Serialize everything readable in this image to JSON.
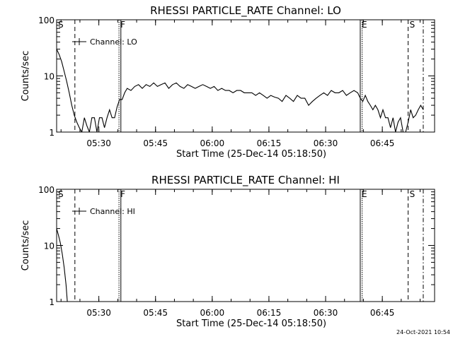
{
  "footer": {
    "timestamp": "24-Oct-2021 10:54"
  },
  "chart_data": [
    {
      "type": "line",
      "title": "RHESSI PARTICLE_RATE Channel: LO",
      "xlabel": "Start Time (25-Dec-14 05:18:50)",
      "ylabel": "Counts/sec",
      "yscale": "log",
      "ylim": [
        1,
        100
      ],
      "xlim": [
        "05:18:50",
        "06:58:50"
      ],
      "x_ticks": [
        "05:30",
        "05:45",
        "06:00",
        "06:15",
        "06:30",
        "06:45"
      ],
      "y_ticks": [
        "1",
        "10",
        "100"
      ],
      "legend": {
        "entries": [
          "Channel: LO"
        ],
        "placement": "top-left"
      },
      "grid": false,
      "markers": [
        {
          "label": "S",
          "time": "05:18:50",
          "style": "solid"
        },
        {
          "time": "05:23:40",
          "style": "dashed"
        },
        {
          "label": "F",
          "time": "05:35:20",
          "style": "dotted"
        },
        {
          "time": "05:35:50",
          "style": "solid"
        },
        {
          "label": "E",
          "time": "06:39:10",
          "style": "solid"
        },
        {
          "time": "06:39:40",
          "style": "dotted"
        },
        {
          "label": "S",
          "time": "06:51:50",
          "style": "dashed"
        },
        {
          "time": "06:55:50",
          "style": "dashdot"
        }
      ],
      "series": [
        {
          "name": "Channel: LO",
          "x": [
            "05:18:50",
            "05:19:30",
            "05:20:10",
            "05:20:50",
            "05:21:30",
            "05:22:10",
            "05:22:50",
            "05:23:30",
            "05:24:10",
            "05:24:50",
            "05:25:30",
            "05:26:10",
            "05:26:50",
            "05:27:30",
            "05:28:10",
            "05:28:50",
            "05:29:30",
            "05:30:10",
            "05:30:50",
            "05:31:30",
            "05:32:10",
            "05:32:50",
            "05:33:30",
            "05:34:10",
            "05:34:50",
            "05:35:30",
            "05:36:10",
            "05:36:50",
            "05:37:30",
            "05:38:30",
            "05:39:30",
            "05:40:30",
            "05:41:30",
            "05:42:30",
            "05:43:30",
            "05:44:30",
            "05:45:30",
            "05:46:30",
            "05:47:30",
            "05:48:30",
            "05:49:30",
            "05:50:30",
            "05:51:30",
            "05:52:30",
            "05:53:30",
            "05:54:30",
            "05:55:30",
            "05:56:30",
            "05:57:30",
            "05:58:30",
            "05:59:30",
            "06:00:30",
            "06:01:30",
            "06:02:30",
            "06:03:30",
            "06:04:30",
            "06:05:30",
            "06:06:30",
            "06:07:30",
            "06:08:30",
            "06:09:30",
            "06:10:30",
            "06:11:30",
            "06:12:30",
            "06:13:30",
            "06:14:30",
            "06:15:30",
            "06:16:30",
            "06:17:30",
            "06:18:30",
            "06:19:30",
            "06:20:30",
            "06:21:30",
            "06:22:30",
            "06:23:30",
            "06:24:30",
            "06:25:30",
            "06:26:30",
            "06:27:30",
            "06:28:30",
            "06:29:30",
            "06:30:30",
            "06:31:30",
            "06:32:30",
            "06:33:30",
            "06:34:30",
            "06:35:30",
            "06:36:30",
            "06:37:30",
            "06:38:30",
            "06:39:10",
            "06:39:50",
            "06:40:30",
            "06:41:10",
            "06:41:50",
            "06:42:30",
            "06:43:10",
            "06:43:50",
            "06:44:30",
            "06:45:10",
            "06:45:50",
            "06:46:30",
            "06:47:10",
            "06:47:50",
            "06:48:30",
            "06:49:10",
            "06:49:50",
            "06:50:30",
            "06:51:10",
            "06:51:50",
            "06:52:30",
            "06:53:10",
            "06:53:50",
            "06:54:30",
            "06:55:10",
            "06:55:50"
          ],
          "y": [
            30,
            24,
            18,
            12,
            8,
            5,
            3,
            2,
            1.5,
            1.2,
            1,
            1.8,
            1.3,
            1,
            1.8,
            1.8,
            1,
            1.8,
            1.8,
            1.2,
            1.8,
            2.5,
            1.8,
            1.8,
            2.8,
            3.8,
            3.8,
            5,
            6,
            5.5,
            6.5,
            7,
            6,
            7,
            6.5,
            7.5,
            6.5,
            7,
            7.5,
            6,
            7,
            7.5,
            6.5,
            6,
            7,
            6.5,
            6,
            6.5,
            7,
            6.5,
            6,
            6.5,
            5.5,
            6,
            5.5,
            5.5,
            5,
            5.5,
            5.5,
            5,
            5,
            5,
            4.5,
            5,
            4.5,
            4,
            4.5,
            4.2,
            4,
            3.5,
            4.5,
            4,
            3.5,
            4.5,
            4,
            4,
            3,
            3.5,
            4,
            4.5,
            5,
            4.5,
            5.5,
            5,
            5,
            5.5,
            4.5,
            5,
            5.5,
            5,
            4,
            3.5,
            4.5,
            3.5,
            3,
            2.5,
            3,
            2.5,
            1.8,
            2.5,
            1.8,
            1.8,
            1.2,
            1.8,
            1,
            1.5,
            1.8,
            1,
            1,
            1.5,
            2.5,
            1.8,
            2,
            2.5,
            3,
            2.5
          ]
        }
      ]
    },
    {
      "type": "line",
      "title": "RHESSI PARTICLE_RATE Channel: HI",
      "xlabel": "Start Time (25-Dec-14 05:18:50)",
      "ylabel": "Counts/sec",
      "yscale": "log",
      "ylim": [
        1,
        100
      ],
      "xlim": [
        "05:18:50",
        "06:58:50"
      ],
      "x_ticks": [
        "05:30",
        "05:45",
        "06:00",
        "06:15",
        "06:30",
        "06:45"
      ],
      "y_ticks": [
        "1",
        "10",
        "100"
      ],
      "legend": {
        "entries": [
          "Channel: HI"
        ],
        "placement": "top-left"
      },
      "grid": false,
      "markers": [
        {
          "label": "S",
          "time": "05:18:50",
          "style": "solid"
        },
        {
          "time": "05:23:40",
          "style": "dashed"
        },
        {
          "label": "F",
          "time": "05:35:20",
          "style": "dotted"
        },
        {
          "time": "05:35:50",
          "style": "solid"
        },
        {
          "label": "E",
          "time": "06:39:10",
          "style": "solid"
        },
        {
          "time": "06:39:40",
          "style": "dotted"
        },
        {
          "label": "S",
          "time": "06:51:50",
          "style": "dashed"
        },
        {
          "time": "06:55:50",
          "style": "dashdot"
        }
      ],
      "series": [
        {
          "name": "Channel: HI",
          "x": [
            "05:18:50",
            "05:19:20",
            "05:19:50",
            "05:20:20",
            "05:20:50",
            "05:21:20",
            "05:21:40"
          ],
          "y": [
            20,
            15,
            11,
            7,
            4,
            2,
            1
          ]
        }
      ]
    }
  ]
}
